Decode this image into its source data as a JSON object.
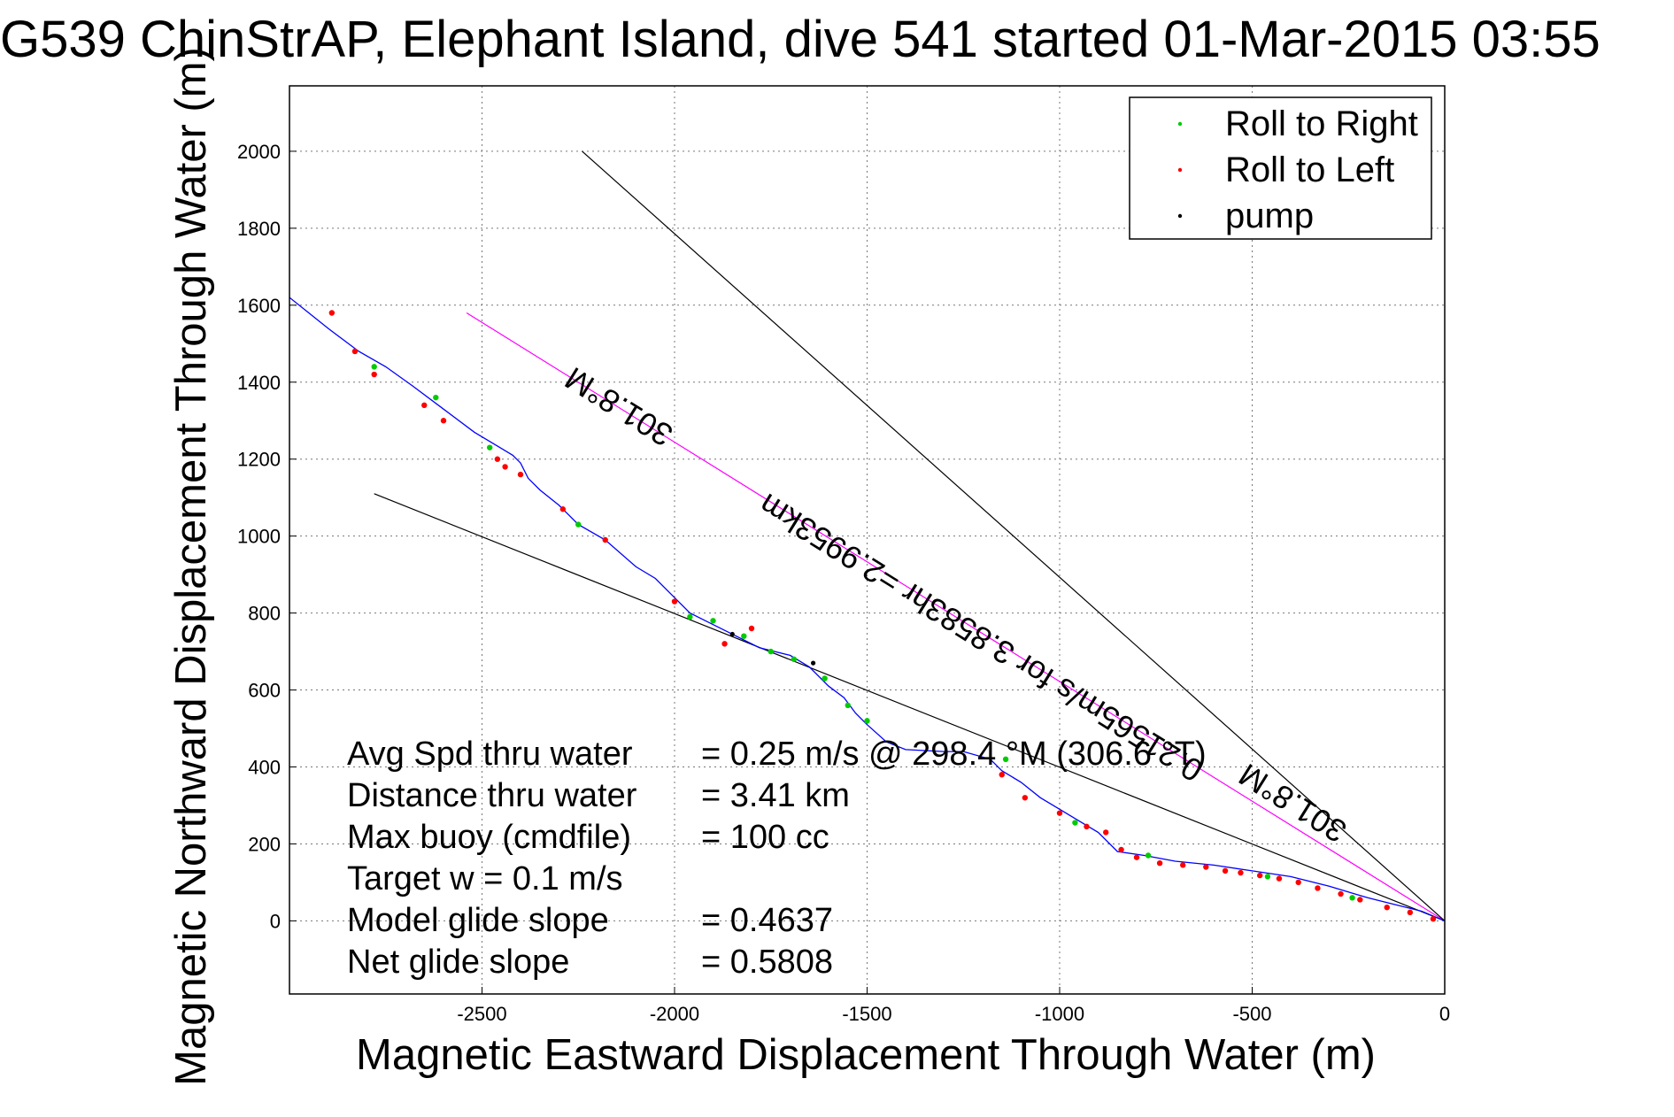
{
  "chart_data": {
    "type": "line",
    "title": "G539 ChinStrAP, Elephant Island, dive 541 started 01-Mar-2015 03:55",
    "xlabel": "Magnetic Eastward Displacement Through Water (m)",
    "ylabel": "Magnetic Northward Displacement Through Water (m)",
    "xlim": [
      -3000,
      0
    ],
    "ylim": [
      -190,
      2170
    ],
    "xticks": [
      -2500,
      -2000,
      -1500,
      -1000,
      -500,
      0
    ],
    "yticks": [
      0,
      200,
      400,
      600,
      800,
      1000,
      1200,
      1400,
      1600,
      1800,
      2000
    ],
    "grid": true,
    "legend_position": "top-right",
    "legend": [
      {
        "label": "Roll to Right",
        "color": "#00cc00"
      },
      {
        "label": "Roll to Left",
        "color": "#ff0000"
      },
      {
        "label": "pump",
        "color": "#000000"
      }
    ],
    "track": {
      "color": "#0000ff",
      "x": [
        0,
        -60,
        -120,
        -200,
        -300,
        -400,
        -500,
        -600,
        -700,
        -780,
        -850,
        -900,
        -950,
        -1000,
        -1050,
        -1100,
        -1150,
        -1180,
        -1250,
        -1300,
        -1400,
        -1450,
        -1500,
        -1530,
        -1560,
        -1600,
        -1650,
        -1700,
        -1780,
        -1860,
        -1920,
        -1960,
        -2000,
        -2050,
        -2100,
        -2180,
        -2250,
        -2300,
        -2350,
        -2380,
        -2400,
        -2420,
        -2470,
        -2520,
        -2600,
        -2680,
        -2750,
        -2820,
        -2900,
        -2950,
        -3000
      ],
      "y": [
        0,
        25,
        40,
        60,
        90,
        115,
        130,
        145,
        155,
        170,
        180,
        230,
        260,
        290,
        320,
        360,
        390,
        420,
        440,
        440,
        445,
        465,
        510,
        540,
        580,
        610,
        660,
        690,
        710,
        750,
        780,
        800,
        840,
        890,
        920,
        990,
        1030,
        1080,
        1120,
        1150,
        1190,
        1210,
        1240,
        1270,
        1330,
        1390,
        1440,
        1480,
        1540,
        1580,
        1620
      ]
    },
    "roll_left_points": {
      "x": [
        -30,
        -90,
        -150,
        -220,
        -270,
        -330,
        -380,
        -430,
        -480,
        -530,
        -570,
        -620,
        -680,
        -740,
        -800,
        -840,
        -880,
        -930,
        -1000,
        -1090,
        -1150,
        -1800,
        -1870,
        -2000,
        -2180,
        -2290,
        -2400,
        -2440,
        -2460,
        -2600,
        -2650,
        -2780,
        -2830,
        -2890
      ],
      "y": [
        5,
        22,
        35,
        55,
        70,
        85,
        100,
        110,
        118,
        125,
        130,
        140,
        145,
        150,
        165,
        185,
        230,
        245,
        280,
        320,
        380,
        760,
        720,
        830,
        990,
        1070,
        1160,
        1180,
        1200,
        1300,
        1340,
        1420,
        1480,
        1580
      ]
    },
    "roll_right_points": {
      "x": [
        -240,
        -460,
        -770,
        -960,
        -1140,
        -1500,
        -1550,
        -1610,
        -1690,
        -1750,
        -1820,
        -1900,
        -1960,
        -2250,
        -2480,
        -2620,
        -2780
      ],
      "y": [
        60,
        115,
        170,
        255,
        420,
        520,
        560,
        630,
        680,
        700,
        740,
        780,
        790,
        1030,
        1230,
        1360,
        1440
      ]
    },
    "pump_points": {
      "x": [
        -1640,
        -1850
      ],
      "y": [
        670,
        745
      ]
    },
    "reference_lines": [
      {
        "name": "heading-line",
        "color": "#ff00ff",
        "x": [
          0,
          -2540
        ],
        "y": [
          0,
          1580
        ],
        "label": "301.8°M"
      },
      {
        "name": "upper-line",
        "color": "#000000",
        "x": [
          0,
          -2240
        ],
        "y": [
          0,
          2000
        ],
        "label": "301.8°M"
      },
      {
        "name": "lower-line",
        "color": "#000000",
        "x": [
          0,
          -2780
        ],
        "y": [
          0,
          1110
        ],
        "label": ""
      }
    ],
    "line_annotations": [
      {
        "text": "301.8°M",
        "x": -2130,
        "y": 1360,
        "angle": -31.9
      },
      {
        "text": "0.21565m/s for 3.8583hr =2.9953km",
        "x": -1190,
        "y": 760,
        "angle": -31.9
      },
      {
        "text": "301.8°M",
        "x": -380,
        "y": 330,
        "angle": -31.9
      }
    ],
    "stats": [
      {
        "label": "Avg Spd thru water",
        "value": "=  0.25 m/s @ 298.4 °M (306.6 °T)"
      },
      {
        "label": "Distance thru water",
        "value": "=  3.41 km"
      },
      {
        "label": "Max buoy (cmdfile)",
        "value": "= 100 cc"
      },
      {
        "label": "Target w    = 0.1 m/s",
        "value": ""
      },
      {
        "label": "Model glide slope",
        "value": "= 0.4637"
      },
      {
        "label": "Net glide slope",
        "value": "= 0.5808"
      }
    ]
  }
}
